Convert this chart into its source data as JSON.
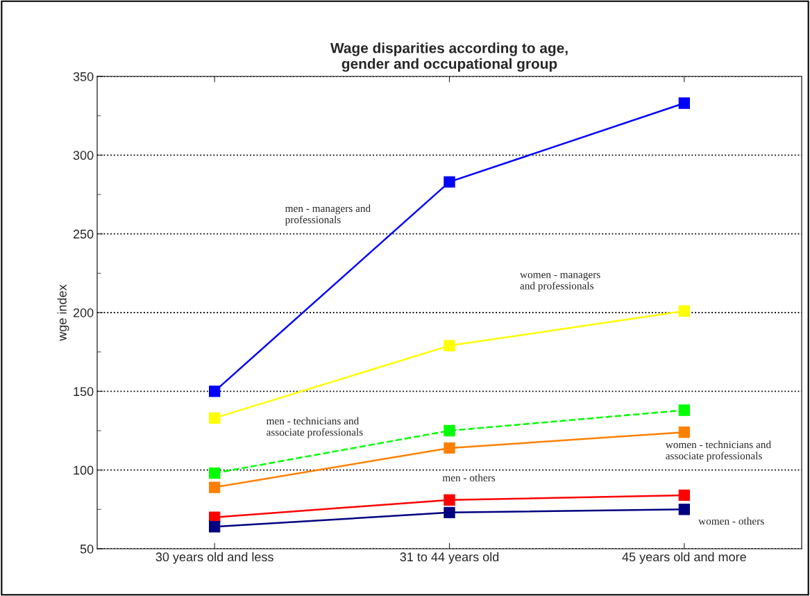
{
  "chart_data": {
    "type": "line",
    "title": "Wage disparities according to age,\ngender and occupational group",
    "ylabel": "wge index",
    "categories": [
      "30 years old and less",
      "31 to 44 years old",
      "45 years old and more"
    ],
    "series": [
      {
        "name": "men - managers and\nprofessionals",
        "color": "#0000ff",
        "values": [
          150,
          283,
          333
        ]
      },
      {
        "name": "women - managers\nand professionals",
        "color": "#ffff00",
        "values": [
          133,
          179,
          201
        ]
      },
      {
        "name": "men - technicians and\nassociate professionals",
        "color": "#00ff00",
        "values": [
          98,
          125,
          138
        ],
        "line_style": "dashed"
      },
      {
        "name": "women - technicians and\nassociate professionals",
        "color": "#ff8000",
        "values": [
          89,
          114,
          124
        ]
      },
      {
        "name": "men - others",
        "color": "#ff0000",
        "values": [
          70,
          81,
          84
        ]
      },
      {
        "name": "women - others",
        "color": "#000080",
        "values": [
          64,
          73,
          75
        ]
      }
    ],
    "ylim": [
      50,
      350
    ],
    "yticks": [
      50,
      {
        "value": 75,
        "label": null
      },
      100,
      {
        "value": 125,
        "label": null
      },
      150,
      {
        "value": 175,
        "label": null
      },
      200,
      {
        "value": 225,
        "label": null
      },
      250,
      {
        "value": 275,
        "label": null
      },
      300,
      {
        "value": 325,
        "label": null
      },
      350
    ],
    "grid": "y",
    "marker": "square",
    "legend": false
  }
}
